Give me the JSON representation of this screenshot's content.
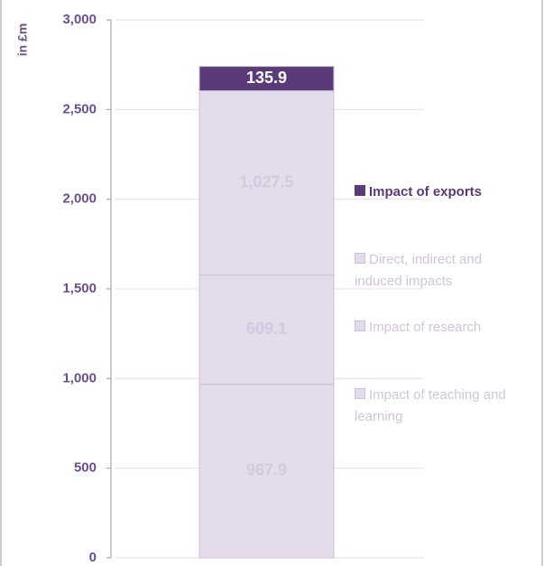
{
  "chart_data": {
    "type": "stacked_bar",
    "y_label": "in £m",
    "categories": [
      null
    ],
    "series": [
      {
        "name": "Impact of teaching and learning",
        "color": "#e4dcea",
        "values": [
          967.9
        ],
        "value_labels": [
          "967.9"
        ]
      },
      {
        "name": "Impact of research",
        "color": "#e4dcea",
        "values": [
          609.1
        ],
        "value_labels": [
          "609.1"
        ]
      },
      {
        "name": "Direct, indirect and induced impacts",
        "color": "#e4dcea",
        "values": [
          1027.5
        ],
        "value_labels": [
          "1,027.5"
        ]
      },
      {
        "name": "Impact of exports",
        "color": "#5b3a78",
        "values": [
          135.9
        ],
        "value_labels": [
          "135.9"
        ]
      }
    ],
    "ylim": [
      0,
      3000
    ],
    "yticks": [
      0,
      500,
      {
        "value": 1000,
        "label": "1,000"
      },
      {
        "value": 1500,
        "label": "1,500"
      },
      {
        "value": 2000,
        "label": "2,000"
      },
      {
        "value": 2500,
        "label": "2,500"
      },
      {
        "value": 3000,
        "label": "3,000"
      }
    ],
    "grid": true
  }
}
